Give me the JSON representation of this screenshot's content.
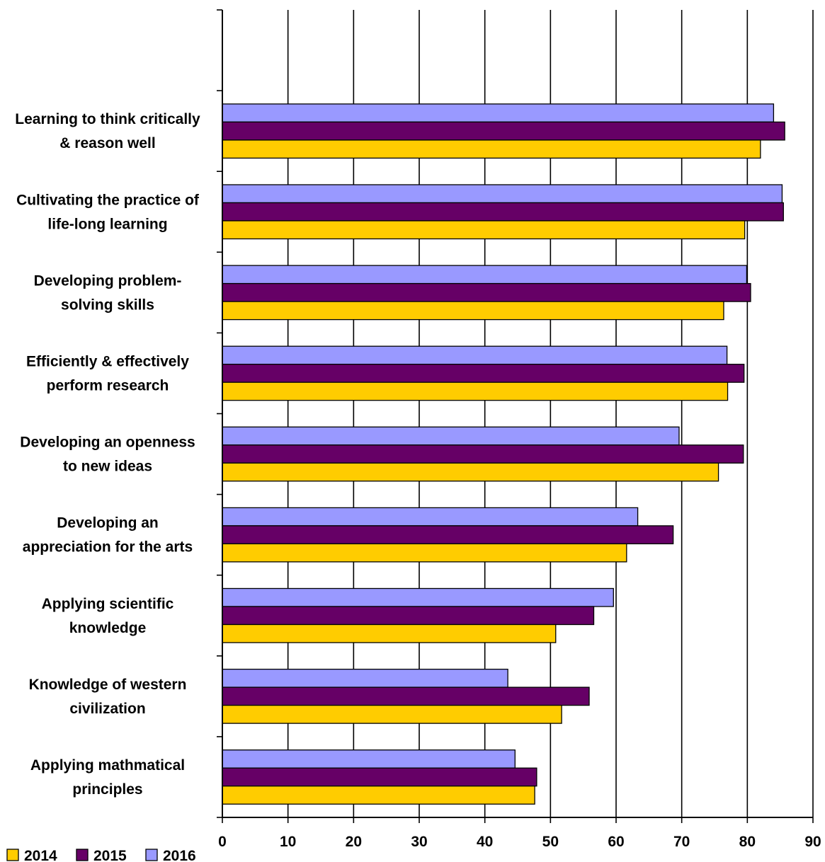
{
  "chart_data": {
    "type": "bar",
    "orientation": "horizontal",
    "categories": [
      "Learning to think critically & reason well",
      "Cultivating the practice of life-long learning",
      "Developing problem-solving skills",
      "Efficiently & effectively perform research",
      "Developing an openness to new ideas",
      "Developing an appreciation for the arts",
      "Applying scientific knowledge",
      "Knowledge of western civilization",
      "Applying mathmatical principles"
    ],
    "category_label_lines": [
      [
        "Learning to think critically",
        "& reason well"
      ],
      [
        "Cultivating the practice of",
        "life-long learning"
      ],
      [
        "Developing problem-",
        "solving skills"
      ],
      [
        "Efficiently & effectively",
        "perform research"
      ],
      [
        "Developing an openness",
        "to new ideas"
      ],
      [
        "Developing an",
        "appreciation for the arts"
      ],
      [
        "Applying scientific",
        "knowledge"
      ],
      [
        "Knowledge of western",
        "civilization"
      ],
      [
        "Applying mathmatical",
        "principles"
      ]
    ],
    "series": [
      {
        "name": "2014",
        "color": "#FFCC00",
        "values": [
          82,
          79.6,
          76.4,
          77,
          75.6,
          61.6,
          50.8,
          51.7,
          47.6
        ]
      },
      {
        "name": "2015",
        "color": "#660066",
        "values": [
          85.7,
          85.5,
          80.5,
          79.5,
          79.4,
          68.7,
          56.6,
          55.9,
          47.9
        ]
      },
      {
        "name": "2016",
        "color": "#9999FF",
        "values": [
          84,
          85.3,
          79.9,
          76.9,
          69.6,
          63.3,
          59.6,
          43.5,
          44.6
        ]
      }
    ],
    "xlim": [
      0,
      90
    ],
    "xticks": [
      0,
      10,
      20,
      30,
      40,
      50,
      60,
      70,
      80,
      90
    ],
    "empty_top_slot": true,
    "grid": "vertical",
    "legend_position": "bottom-left"
  }
}
